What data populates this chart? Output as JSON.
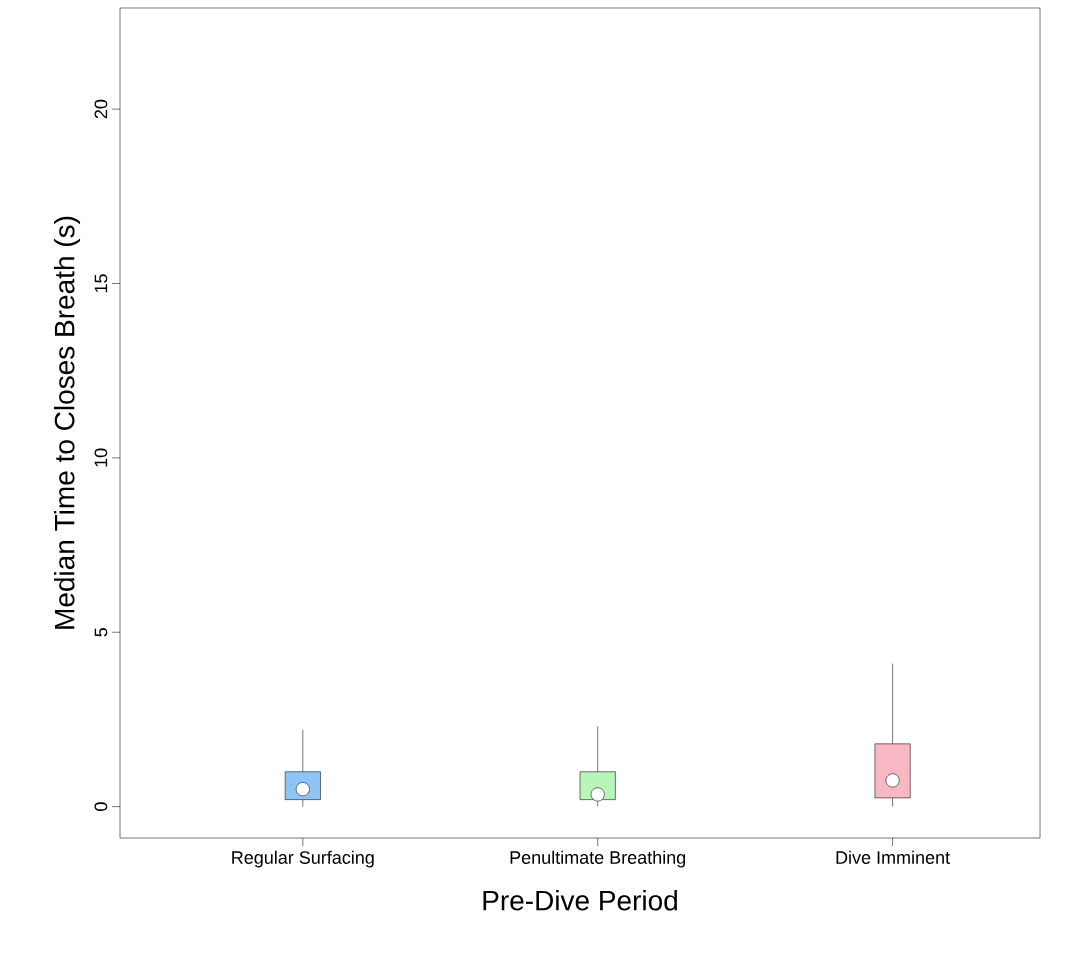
{
  "chart_data": {
    "type": "box",
    "xlabel": "Pre-Dive Period",
    "ylabel": "Median Time to Closes Breath (s)",
    "categories": [
      "Regular Surfacing",
      "Penultimate Breathing",
      "Dive Imminent"
    ],
    "colors": [
      "#8ec5f5",
      "#b8f5b8",
      "#f7b8c4"
    ],
    "boxes": [
      {
        "low": 0,
        "q1": 0.2,
        "median": 0.5,
        "q3": 1.0,
        "high": 2.2
      },
      {
        "low": 0,
        "q1": 0.2,
        "median": 0.35,
        "q3": 1.0,
        "high": 2.3
      },
      {
        "low": 0,
        "q1": 0.25,
        "median": 0.75,
        "q3": 1.8,
        "high": 4.1
      }
    ],
    "ylim": [
      -0.9,
      22.9
    ],
    "yticks": [
      0,
      5,
      10,
      15,
      20
    ],
    "grid": false
  }
}
